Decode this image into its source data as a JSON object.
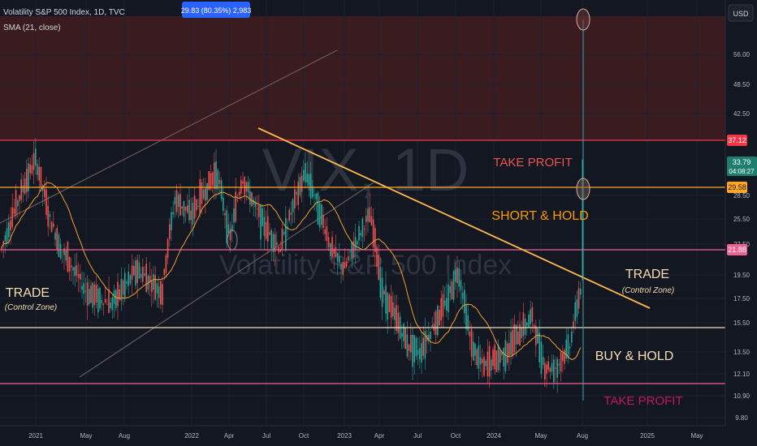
{
  "header": {
    "title": "Volatility S&P 500 Index, 1D, TVC",
    "indicator": "SMA (21, close)",
    "measure_label": "29.83 (80.35%) 2,983",
    "currency_button": "USD"
  },
  "watermark": {
    "symbol": "VIX, 1D",
    "name": "Volatility S&P 500 Index"
  },
  "annotations": {
    "take_profit_top": "TAKE PROFIT",
    "short_hold": "SHORT & HOLD",
    "trade_right": "TRADE",
    "trade_right_sub": "(Control Zone)",
    "trade_left": "TRADE",
    "trade_left_sub": "(Control Zone)",
    "buy_hold": "BUY & HOLD",
    "take_profit_bottom": "TAKE PROFIT"
  },
  "price_badges": {
    "level_top": "37.12",
    "last_price": "33.79",
    "countdown": "04:08:27",
    "level_mid": "29.58",
    "level_low": "21.88"
  },
  "colors": {
    "background": "#131722",
    "take_profit_zone": "#3a1b1f",
    "red_line": "#f23645",
    "pink_line": "#f06292",
    "orange_line": "#ffa726",
    "cream_line": "#f5deb3",
    "sma": "#f0a030",
    "trend_channel": "#6b5a55",
    "bull_candle": "#26a69a",
    "bear_candle": "#ef5350",
    "measure_badge": "#2962ff",
    "teal_badge": "#1e7f6f",
    "watermark": "#2f3340"
  },
  "chart_data": {
    "type": "candlestick",
    "symbol": "VIX",
    "timeframe": "1D",
    "y_axis": {
      "scale": "log",
      "ticks": [
        "56.00",
        "48.50",
        "42.50",
        "28.50",
        "25.50",
        "22.50",
        "19.50",
        "17.50",
        "15.50",
        "13.50",
        "12.10",
        "10.90",
        "9.80"
      ]
    },
    "x_axis": {
      "ticks": [
        "2021",
        "May",
        "Aug",
        "2022",
        "Apr",
        "Jul",
        "Oct",
        "2023",
        "Apr",
        "Jul",
        "Oct",
        "2024",
        "May",
        "Aug",
        "2025",
        "May"
      ]
    },
    "horizontal_levels": [
      {
        "label": "TAKE PROFIT zone top",
        "value": 37.12
      },
      {
        "label": "SHORT & HOLD",
        "value": 29.58
      },
      {
        "label": "TRADE upper",
        "value": 21.88
      },
      {
        "label": "BUY & HOLD",
        "value": 15.2
      },
      {
        "label": "TAKE PROFIT lower",
        "value": 11.3
      }
    ],
    "last_price": 33.79,
    "measure": {
      "change": 29.83,
      "percent": 80.35,
      "bars": 2983
    },
    "price_path": [
      {
        "d": "2020-12",
        "v": 22.0
      },
      {
        "d": "2021-01",
        "v": 34.0
      },
      {
        "d": "2021-02",
        "v": 26.0
      },
      {
        "d": "2021-03",
        "v": 22.0
      },
      {
        "d": "2021-05",
        "v": 18.0
      },
      {
        "d": "2021-07",
        "v": 17.0
      },
      {
        "d": "2021-09",
        "v": 20.0
      },
      {
        "d": "2021-11",
        "v": 18.0
      },
      {
        "d": "2021-12",
        "v": 28.0
      },
      {
        "d": "2022-01",
        "v": 26.0
      },
      {
        "d": "2022-03",
        "v": 32.0
      },
      {
        "d": "2022-04",
        "v": 23.0
      },
      {
        "d": "2022-05",
        "v": 31.0
      },
      {
        "d": "2022-06",
        "v": 27.0
      },
      {
        "d": "2022-07",
        "v": 24.0
      },
      {
        "d": "2022-08",
        "v": 22.0
      },
      {
        "d": "2022-10",
        "v": 32.0
      },
      {
        "d": "2022-12",
        "v": 22.0
      },
      {
        "d": "2023-01",
        "v": 20.0
      },
      {
        "d": "2023-03",
        "v": 26.0
      },
      {
        "d": "2023-04",
        "v": 18.0
      },
      {
        "d": "2023-06",
        "v": 14.0
      },
      {
        "d": "2023-07",
        "v": 13.5
      },
      {
        "d": "2023-09",
        "v": 17.0
      },
      {
        "d": "2023-10",
        "v": 20.0
      },
      {
        "d": "2023-11",
        "v": 14.0
      },
      {
        "d": "2023-12",
        "v": 12.5
      },
      {
        "d": "2024-02",
        "v": 13.5
      },
      {
        "d": "2024-04",
        "v": 16.0
      },
      {
        "d": "2024-05",
        "v": 12.5
      },
      {
        "d": "2024-06",
        "v": 12.5
      },
      {
        "d": "2024-07",
        "v": 14.0
      },
      {
        "d": "2024-08",
        "v": 19.0
      }
    ]
  }
}
